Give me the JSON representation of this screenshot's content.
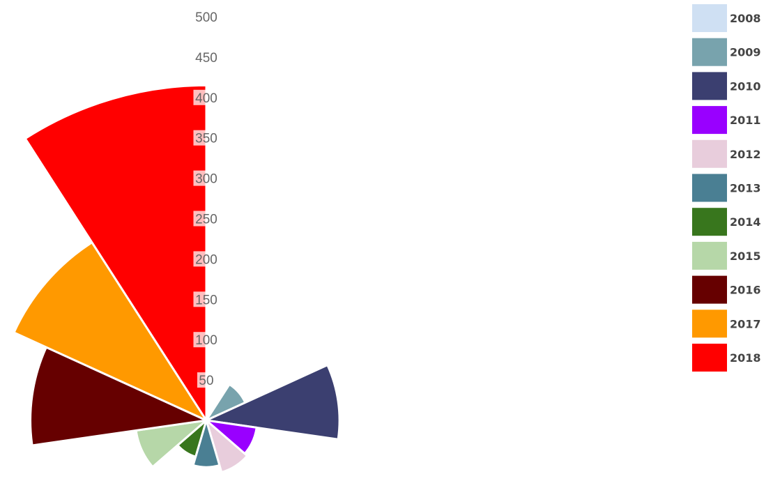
{
  "chart_data": {
    "type": "polar-area",
    "categories": [
      "2008",
      "2009",
      "2010",
      "2011",
      "2012",
      "2013",
      "2014",
      "2015",
      "2016",
      "2017",
      "2018"
    ],
    "values": [
      0,
      53,
      165,
      63,
      67,
      58,
      47,
      88,
      218,
      262,
      415
    ],
    "colors": [
      "#cfe0f3",
      "#78a3ad",
      "#3b3f70",
      "#9900ff",
      "#e8cddc",
      "#4a7f93",
      "#38761d",
      "#b6d7a8",
      "#660000",
      "#ff9900",
      "#ff0000"
    ],
    "r_ticks": [
      50,
      100,
      150,
      200,
      250,
      300,
      350,
      400,
      450,
      500
    ],
    "r_range": [
      0,
      500
    ],
    "legend_position": "right"
  }
}
